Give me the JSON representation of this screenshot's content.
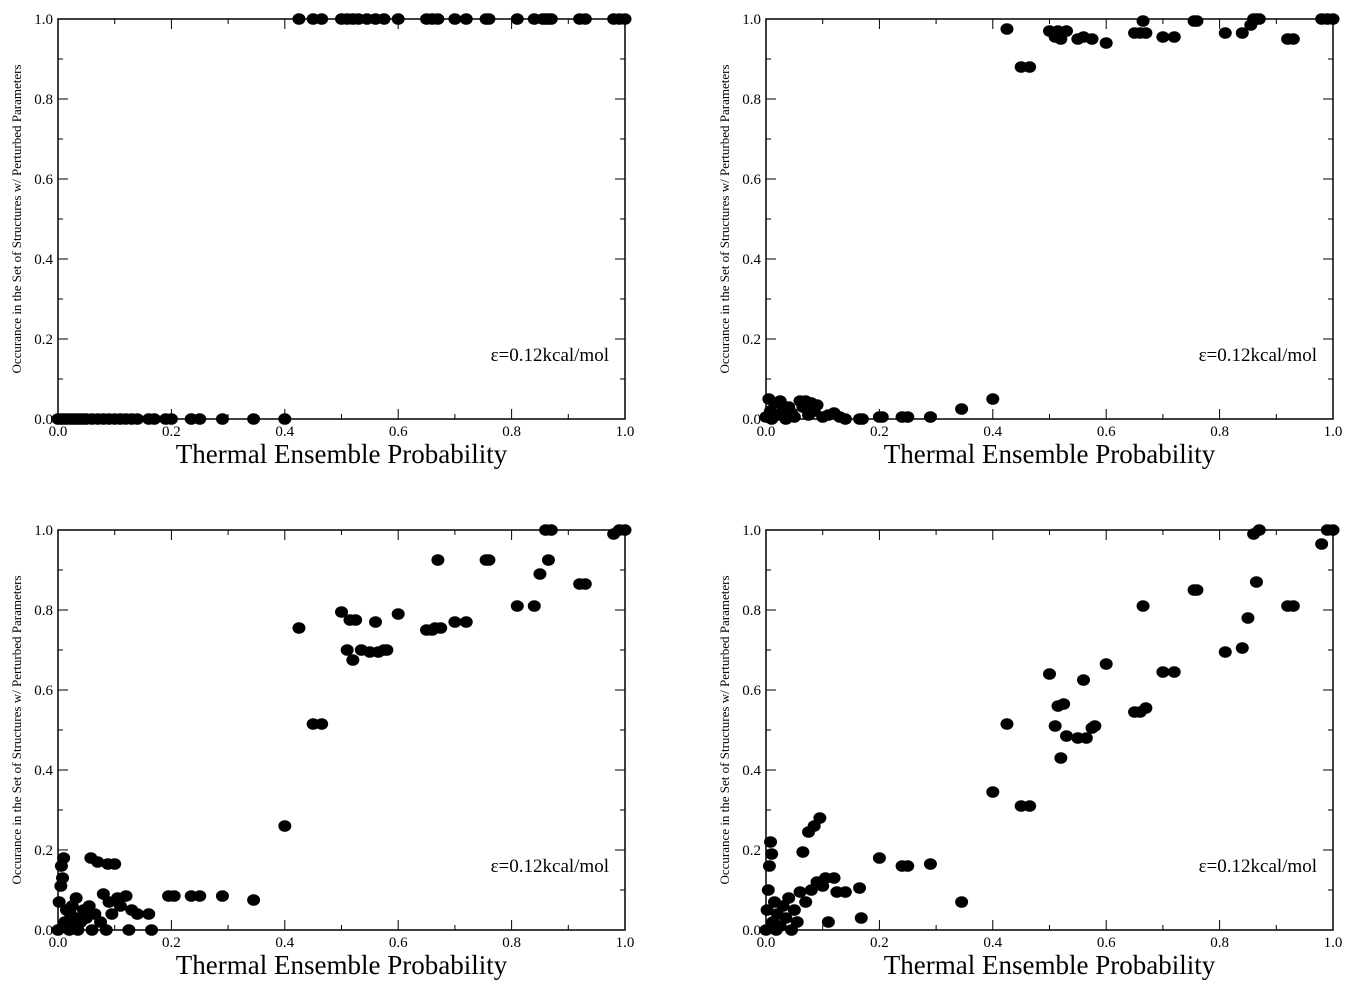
{
  "figure": {
    "colors": {
      "marker": "#000000",
      "axes": "#000000",
      "background": "#ffffff"
    }
  },
  "chart_data": [
    {
      "type": "scatter",
      "title": "",
      "xlabel": "Thermal Ensemble Probability",
      "ylabel": "Occurance in the Set of Structures w/ Perturbed Parameters",
      "annotation": "ε=0.12kcal/mol",
      "xlim": [
        0,
        1
      ],
      "ylim": [
        0,
        1
      ],
      "xticks": [
        "0.0",
        "0.2",
        "0.4",
        "0.6",
        "0.8",
        "1.0"
      ],
      "yticks": [
        "0.0",
        "0.2",
        "0.4",
        "0.6",
        "0.8",
        "1.0"
      ],
      "grid": false,
      "legend": "none",
      "points": [
        [
          0.0,
          0.0
        ],
        [
          0.005,
          0.0
        ],
        [
          0.01,
          0.0
        ],
        [
          0.015,
          0.0
        ],
        [
          0.02,
          0.0
        ],
        [
          0.025,
          0.0
        ],
        [
          0.03,
          0.0
        ],
        [
          0.035,
          0.0
        ],
        [
          0.04,
          0.0
        ],
        [
          0.045,
          0.0
        ],
        [
          0.05,
          0.0
        ],
        [
          0.06,
          0.0
        ],
        [
          0.07,
          0.0
        ],
        [
          0.08,
          0.0
        ],
        [
          0.09,
          0.0
        ],
        [
          0.1,
          0.0
        ],
        [
          0.11,
          0.0
        ],
        [
          0.12,
          0.0
        ],
        [
          0.13,
          0.0
        ],
        [
          0.14,
          0.0
        ],
        [
          0.16,
          0.0
        ],
        [
          0.17,
          0.0
        ],
        [
          0.19,
          0.0
        ],
        [
          0.2,
          0.0
        ],
        [
          0.235,
          0.0
        ],
        [
          0.25,
          0.0
        ],
        [
          0.29,
          0.0
        ],
        [
          0.345,
          0.0
        ],
        [
          0.4,
          0.0
        ],
        [
          0.425,
          1.0
        ],
        [
          0.45,
          1.0
        ],
        [
          0.465,
          1.0
        ],
        [
          0.5,
          1.0
        ],
        [
          0.51,
          1.0
        ],
        [
          0.52,
          1.0
        ],
        [
          0.53,
          1.0
        ],
        [
          0.545,
          1.0
        ],
        [
          0.56,
          1.0
        ],
        [
          0.575,
          1.0
        ],
        [
          0.6,
          1.0
        ],
        [
          0.65,
          1.0
        ],
        [
          0.66,
          1.0
        ],
        [
          0.67,
          1.0
        ],
        [
          0.7,
          1.0
        ],
        [
          0.72,
          1.0
        ],
        [
          0.755,
          1.0
        ],
        [
          0.76,
          1.0
        ],
        [
          0.81,
          1.0
        ],
        [
          0.84,
          1.0
        ],
        [
          0.855,
          1.0
        ],
        [
          0.86,
          1.0
        ],
        [
          0.865,
          1.0
        ],
        [
          0.87,
          1.0
        ],
        [
          0.92,
          1.0
        ],
        [
          0.93,
          1.0
        ],
        [
          0.98,
          1.0
        ],
        [
          0.99,
          1.0
        ],
        [
          1.0,
          1.0
        ]
      ]
    },
    {
      "type": "scatter",
      "title": "",
      "xlabel": "Thermal Ensemble Probability",
      "ylabel": "Occurance in the Set of Structures w/ Perturbed Parameters",
      "annotation": "ε=0.12kcal/mol",
      "xlim": [
        0,
        1
      ],
      "ylim": [
        0,
        1
      ],
      "xticks": [
        "0.0",
        "0.2",
        "0.4",
        "0.6",
        "0.8",
        "1.0"
      ],
      "yticks": [
        "0.0",
        "0.2",
        "0.4",
        "0.6",
        "0.8",
        "1.0"
      ],
      "grid": false,
      "legend": "none",
      "points": [
        [
          0.0,
          0.005
        ],
        [
          0.005,
          0.05
        ],
        [
          0.008,
          0.02
        ],
        [
          0.01,
          0.0
        ],
        [
          0.015,
          0.04
        ],
        [
          0.02,
          0.01
        ],
        [
          0.025,
          0.045
        ],
        [
          0.03,
          0.02
        ],
        [
          0.035,
          0.0
        ],
        [
          0.04,
          0.03
        ],
        [
          0.045,
          0.015
        ],
        [
          0.05,
          0.005
        ],
        [
          0.06,
          0.045
        ],
        [
          0.065,
          0.03
        ],
        [
          0.07,
          0.045
        ],
        [
          0.075,
          0.01
        ],
        [
          0.08,
          0.04
        ],
        [
          0.085,
          0.02
        ],
        [
          0.09,
          0.035
        ],
        [
          0.1,
          0.005
        ],
        [
          0.11,
          0.01
        ],
        [
          0.12,
          0.015
        ],
        [
          0.13,
          0.005
        ],
        [
          0.14,
          0.0
        ],
        [
          0.165,
          0.0
        ],
        [
          0.17,
          0.0
        ],
        [
          0.2,
          0.005
        ],
        [
          0.205,
          0.005
        ],
        [
          0.24,
          0.005
        ],
        [
          0.25,
          0.005
        ],
        [
          0.29,
          0.005
        ],
        [
          0.345,
          0.025
        ],
        [
          0.4,
          0.05
        ],
        [
          0.425,
          0.975
        ],
        [
          0.45,
          0.88
        ],
        [
          0.465,
          0.88
        ],
        [
          0.5,
          0.97
        ],
        [
          0.51,
          0.955
        ],
        [
          0.515,
          0.97
        ],
        [
          0.52,
          0.95
        ],
        [
          0.53,
          0.97
        ],
        [
          0.55,
          0.95
        ],
        [
          0.56,
          0.955
        ],
        [
          0.575,
          0.95
        ],
        [
          0.6,
          0.94
        ],
        [
          0.65,
          0.965
        ],
        [
          0.66,
          0.965
        ],
        [
          0.665,
          0.995
        ],
        [
          0.67,
          0.965
        ],
        [
          0.7,
          0.955
        ],
        [
          0.72,
          0.955
        ],
        [
          0.755,
          0.995
        ],
        [
          0.76,
          0.995
        ],
        [
          0.81,
          0.965
        ],
        [
          0.84,
          0.965
        ],
        [
          0.855,
          0.985
        ],
        [
          0.86,
          1.0
        ],
        [
          0.865,
          1.0
        ],
        [
          0.87,
          1.0
        ],
        [
          0.92,
          0.95
        ],
        [
          0.93,
          0.95
        ],
        [
          0.98,
          1.0
        ],
        [
          0.99,
          1.0
        ],
        [
          1.0,
          1.0
        ]
      ]
    },
    {
      "type": "scatter",
      "title": "",
      "xlabel": "Thermal Ensemble Probability",
      "ylabel": "Occurance in the Set of Structures w/ Perturbed Parameters",
      "annotation": "ε=0.12kcal/mol",
      "xlim": [
        0,
        1
      ],
      "ylim": [
        0,
        1
      ],
      "xticks": [
        "0.0",
        "0.2",
        "0.4",
        "0.6",
        "0.8",
        "1.0"
      ],
      "yticks": [
        "0.0",
        "0.2",
        "0.4",
        "0.6",
        "0.8",
        "1.0"
      ],
      "grid": false,
      "legend": "none",
      "points": [
        [
          0.0,
          0.0
        ],
        [
          0.002,
          0.07
        ],
        [
          0.005,
          0.11
        ],
        [
          0.006,
          0.16
        ],
        [
          0.008,
          0.13
        ],
        [
          0.01,
          0.18
        ],
        [
          0.012,
          0.02
        ],
        [
          0.015,
          0.05
        ],
        [
          0.02,
          0.0
        ],
        [
          0.022,
          0.04
        ],
        [
          0.025,
          0.06
        ],
        [
          0.028,
          0.01
        ],
        [
          0.03,
          0.03
        ],
        [
          0.032,
          0.08
        ],
        [
          0.035,
          0.0
        ],
        [
          0.04,
          0.02
        ],
        [
          0.045,
          0.05
        ],
        [
          0.05,
          0.03
        ],
        [
          0.055,
          0.06
        ],
        [
          0.058,
          0.18
        ],
        [
          0.06,
          0.0
        ],
        [
          0.065,
          0.04
        ],
        [
          0.07,
          0.17
        ],
        [
          0.075,
          0.02
        ],
        [
          0.08,
          0.09
        ],
        [
          0.085,
          0.0
        ],
        [
          0.088,
          0.165
        ],
        [
          0.09,
          0.07
        ],
        [
          0.095,
          0.04
        ],
        [
          0.1,
          0.165
        ],
        [
          0.105,
          0.08
        ],
        [
          0.11,
          0.06
        ],
        [
          0.12,
          0.085
        ],
        [
          0.125,
          0.0
        ],
        [
          0.13,
          0.05
        ],
        [
          0.14,
          0.04
        ],
        [
          0.16,
          0.04
        ],
        [
          0.165,
          0.0
        ],
        [
          0.195,
          0.085
        ],
        [
          0.205,
          0.085
        ],
        [
          0.235,
          0.085
        ],
        [
          0.25,
          0.085
        ],
        [
          0.29,
          0.085
        ],
        [
          0.345,
          0.075
        ],
        [
          0.4,
          0.26
        ],
        [
          0.425,
          0.755
        ],
        [
          0.45,
          0.515
        ],
        [
          0.465,
          0.515
        ],
        [
          0.5,
          0.795
        ],
        [
          0.51,
          0.7
        ],
        [
          0.515,
          0.775
        ],
        [
          0.52,
          0.675
        ],
        [
          0.525,
          0.775
        ],
        [
          0.535,
          0.7
        ],
        [
          0.55,
          0.695
        ],
        [
          0.56,
          0.77
        ],
        [
          0.565,
          0.695
        ],
        [
          0.575,
          0.7
        ],
        [
          0.58,
          0.7
        ],
        [
          0.6,
          0.79
        ],
        [
          0.65,
          0.75
        ],
        [
          0.66,
          0.75
        ],
        [
          0.665,
          0.755
        ],
        [
          0.67,
          0.925
        ],
        [
          0.675,
          0.755
        ],
        [
          0.7,
          0.77
        ],
        [
          0.72,
          0.77
        ],
        [
          0.755,
          0.925
        ],
        [
          0.76,
          0.925
        ],
        [
          0.81,
          0.81
        ],
        [
          0.84,
          0.81
        ],
        [
          0.85,
          0.89
        ],
        [
          0.86,
          1.0
        ],
        [
          0.865,
          0.925
        ],
        [
          0.87,
          1.0
        ],
        [
          0.92,
          0.865
        ],
        [
          0.93,
          0.865
        ],
        [
          0.98,
          0.99
        ],
        [
          0.99,
          1.0
        ],
        [
          1.0,
          1.0
        ]
      ]
    },
    {
      "type": "scatter",
      "title": "",
      "xlabel": "Thermal Ensemble Probability",
      "ylabel": "Occurance in the Set of Structures w/ Perturbed Parameters",
      "annotation": "ε=0.12kcal/mol",
      "xlim": [
        0,
        1
      ],
      "ylim": [
        0,
        1
      ],
      "xticks": [
        "0.0",
        "0.2",
        "0.4",
        "0.6",
        "0.8",
        "1.0"
      ],
      "yticks": [
        "0.0",
        "0.2",
        "0.4",
        "0.6",
        "0.8",
        "1.0"
      ],
      "grid": false,
      "legend": "none",
      "points": [
        [
          0.0,
          0.0
        ],
        [
          0.002,
          0.05
        ],
        [
          0.004,
          0.1
        ],
        [
          0.006,
          0.16
        ],
        [
          0.008,
          0.22
        ],
        [
          0.01,
          0.19
        ],
        [
          0.012,
          0.02
        ],
        [
          0.015,
          0.07
        ],
        [
          0.018,
          0.0
        ],
        [
          0.02,
          0.04
        ],
        [
          0.025,
          0.01
        ],
        [
          0.03,
          0.06
        ],
        [
          0.035,
          0.03
        ],
        [
          0.04,
          0.08
        ],
        [
          0.045,
          0.0
        ],
        [
          0.05,
          0.05
        ],
        [
          0.055,
          0.02
        ],
        [
          0.06,
          0.095
        ],
        [
          0.065,
          0.195
        ],
        [
          0.07,
          0.07
        ],
        [
          0.075,
          0.245
        ],
        [
          0.08,
          0.1
        ],
        [
          0.085,
          0.26
        ],
        [
          0.09,
          0.12
        ],
        [
          0.095,
          0.28
        ],
        [
          0.1,
          0.11
        ],
        [
          0.105,
          0.13
        ],
        [
          0.11,
          0.02
        ],
        [
          0.12,
          0.13
        ],
        [
          0.125,
          0.095
        ],
        [
          0.14,
          0.095
        ],
        [
          0.165,
          0.105
        ],
        [
          0.168,
          0.03
        ],
        [
          0.2,
          0.18
        ],
        [
          0.24,
          0.16
        ],
        [
          0.25,
          0.16
        ],
        [
          0.29,
          0.165
        ],
        [
          0.345,
          0.07
        ],
        [
          0.4,
          0.345
        ],
        [
          0.425,
          0.515
        ],
        [
          0.45,
          0.31
        ],
        [
          0.465,
          0.31
        ],
        [
          0.5,
          0.64
        ],
        [
          0.51,
          0.51
        ],
        [
          0.515,
          0.56
        ],
        [
          0.52,
          0.43
        ],
        [
          0.525,
          0.565
        ],
        [
          0.53,
          0.485
        ],
        [
          0.55,
          0.48
        ],
        [
          0.56,
          0.625
        ],
        [
          0.565,
          0.48
        ],
        [
          0.575,
          0.505
        ],
        [
          0.58,
          0.51
        ],
        [
          0.6,
          0.665
        ],
        [
          0.65,
          0.545
        ],
        [
          0.66,
          0.545
        ],
        [
          0.665,
          0.81
        ],
        [
          0.67,
          0.555
        ],
        [
          0.7,
          0.645
        ],
        [
          0.72,
          0.645
        ],
        [
          0.755,
          0.85
        ],
        [
          0.76,
          0.85
        ],
        [
          0.81,
          0.695
        ],
        [
          0.84,
          0.705
        ],
        [
          0.85,
          0.78
        ],
        [
          0.86,
          0.99
        ],
        [
          0.865,
          0.87
        ],
        [
          0.87,
          1.0
        ],
        [
          0.92,
          0.81
        ],
        [
          0.93,
          0.81
        ],
        [
          0.98,
          0.965
        ],
        [
          0.99,
          1.0
        ],
        [
          1.0,
          1.0
        ]
      ]
    }
  ]
}
